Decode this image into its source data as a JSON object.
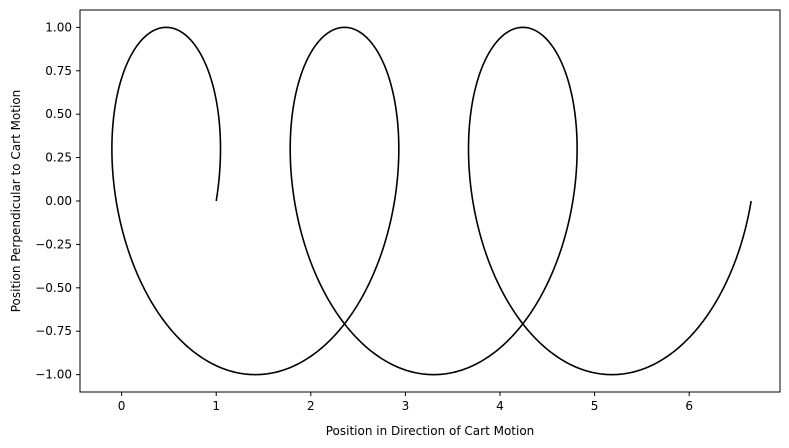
{
  "chart_data": {
    "type": "line",
    "title": "",
    "xlabel": "Position in Direction of Cart Motion",
    "ylabel": "Position Perpendicular to Cart Motion",
    "xlim": [
      -0.44,
      6.96
    ],
    "ylim": [
      -1.1,
      1.1
    ],
    "xticks": [
      0,
      1,
      2,
      3,
      4,
      5,
      6
    ],
    "xtick_labels": [
      "0",
      "1",
      "2",
      "3",
      "4",
      "5",
      "6"
    ],
    "yticks": [
      1.0,
      0.75,
      0.5,
      0.25,
      0.0,
      -0.25,
      -0.5,
      -0.75,
      -1.0
    ],
    "ytick_labels": [
      "1.00",
      "0.75",
      "0.50",
      "0.25",
      "0.00",
      "−0.25",
      "−0.50",
      "−0.75",
      "−1.00"
    ],
    "grid": false,
    "series": [
      {
        "color": "#000000",
        "curve": "prolate cycloid: x = 1.0 + 0.3*t + cos(t) - 1, y = sin(t), t from 0 to 6*pi",
        "start": [
          1.0,
          0.0
        ],
        "end": [
          6.65,
          0.0
        ],
        "points": [
          [
            1.0,
            0.0
          ],
          [
            0.47,
            1.0
          ],
          [
            -0.05,
            0.3
          ],
          [
            1.41,
            -1.0
          ],
          [
            2.36,
            1.0
          ],
          [
            1.83,
            0.3
          ],
          [
            3.3,
            -1.0
          ],
          [
            4.24,
            1.0
          ],
          [
            3.72,
            0.3
          ],
          [
            5.18,
            -1.0
          ],
          [
            6.65,
            0.0
          ]
        ]
      }
    ]
  }
}
